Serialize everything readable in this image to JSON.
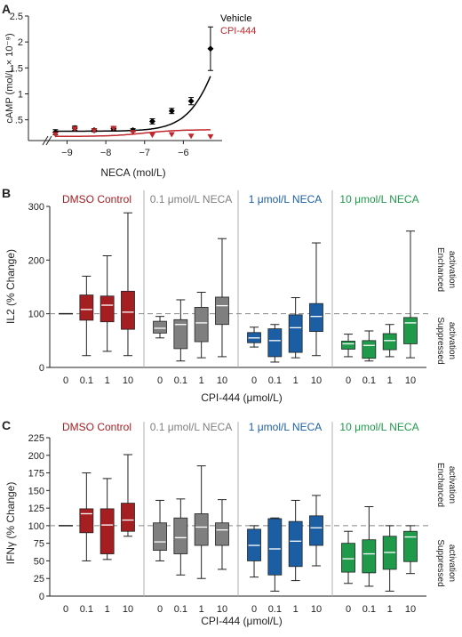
{
  "colors": {
    "vehicle": "#000000",
    "cpi": "#c0272d",
    "dmso": "#a51e22",
    "n01": "#7f7f7f",
    "n1": "#1b5ea4",
    "n10": "#1f9a4b",
    "axis": "#222222",
    "grid": "#b0b0b0"
  },
  "panel_letters": [
    "A",
    "B",
    "C"
  ],
  "chart_data": [
    {
      "type": "line",
      "panel": "A",
      "xlabel": "NECA (mol/L)",
      "ylabel": "cAMP (mol/L × 10⁻⁹)",
      "xlim": [
        -9.4,
        -5.0
      ],
      "ylim": [
        0.1,
        2.5
      ],
      "xticks": [
        -9,
        -8,
        -7,
        -6
      ],
      "yticks": [
        0.5,
        1,
        1.5,
        2,
        2.5
      ],
      "ytick_labels": [
        ".5",
        "1",
        "1.5",
        "2",
        "2.5"
      ],
      "series": [
        {
          "name": "Vehicle",
          "color_key": "vehicle",
          "marker": "diamond",
          "x": [
            -9.3,
            -8.8,
            -8.3,
            -7.8,
            -7.3,
            -6.8,
            -6.3,
            -5.8,
            -5.3
          ],
          "y": [
            0.26,
            0.34,
            0.3,
            0.33,
            0.3,
            0.47,
            0.67,
            0.86,
            1.87
          ],
          "err": [
            0.05,
            0.04,
            0.03,
            0.03,
            0.03,
            0.05,
            0.05,
            0.07,
            0.42
          ],
          "fit": {
            "bottom": 0.28,
            "ec50_log": -4.9,
            "top": 4.0
          }
        },
        {
          "name": "CPI-444",
          "color_key": "cpi",
          "marker": "triangle-down",
          "x": [
            -9.3,
            -8.8,
            -8.3,
            -7.8,
            -7.3,
            -6.8,
            -6.3,
            -5.8,
            -5.3
          ],
          "y": [
            0.22,
            0.33,
            0.29,
            0.34,
            0.26,
            0.21,
            0.22,
            0.19,
            0.18
          ],
          "fit": {
            "bottom": 0.18,
            "ec50_log": -7.0,
            "top": 0.31
          }
        }
      ]
    },
    {
      "type": "box",
      "panel": "B",
      "ylabel": "IL2 (% Change)",
      "xlabel": "CPI-444 (μmol/L)",
      "ylim": [
        0,
        300
      ],
      "yticks": [
        0,
        100,
        200,
        300
      ],
      "reference_line": 100,
      "right_labels": [
        "Enchanced",
        "activation",
        "Suppressed",
        "activation"
      ],
      "x_labels": [
        "0",
        "0.1",
        "1",
        "10"
      ],
      "groups": [
        {
          "title": "DMSO Control",
          "color_key": "dmso",
          "boxes": [
            {
              "baseline": 100
            },
            {
              "min": 22,
              "q1": 88,
              "median": 108,
              "q3": 135,
              "max": 170
            },
            {
              "min": 30,
              "q1": 85,
              "median": 116,
              "q3": 133,
              "max": 208
            },
            {
              "min": 22,
              "q1": 71,
              "median": 103,
              "q3": 142,
              "max": 288
            }
          ]
        },
        {
          "title": "0.1 μmol/L NECA",
          "color_key": "n01",
          "boxes": [
            {
              "min": 55,
              "q1": 64,
              "median": 73,
              "q3": 86,
              "max": 95
            },
            {
              "min": 12,
              "q1": 35,
              "median": 80,
              "q3": 89,
              "max": 126
            },
            {
              "min": 18,
              "q1": 48,
              "median": 83,
              "q3": 112,
              "max": 140
            },
            {
              "min": 20,
              "q1": 80,
              "median": 115,
              "q3": 131,
              "max": 240
            }
          ]
        },
        {
          "title": "1 μmol/L NECA",
          "color_key": "n1",
          "boxes": [
            {
              "min": 38,
              "q1": 46,
              "median": 55,
              "q3": 65,
              "max": 75
            },
            {
              "min": 10,
              "q1": 20,
              "median": 50,
              "q3": 72,
              "max": 80
            },
            {
              "min": 18,
              "q1": 28,
              "median": 74,
              "q3": 98,
              "max": 130
            },
            {
              "min": 22,
              "q1": 67,
              "median": 95,
              "q3": 119,
              "max": 232
            }
          ]
        },
        {
          "title": "10 μmol/L NECA",
          "color_key": "n10",
          "boxes": [
            {
              "min": 20,
              "q1": 34,
              "median": 44,
              "q3": 49,
              "max": 62
            },
            {
              "min": 12,
              "q1": 17,
              "median": 41,
              "q3": 50,
              "max": 68
            },
            {
              "min": 20,
              "q1": 33,
              "median": 50,
              "q3": 63,
              "max": 80
            },
            {
              "min": 18,
              "q1": 44,
              "median": 83,
              "q3": 93,
              "max": 254
            }
          ]
        }
      ]
    },
    {
      "type": "box",
      "panel": "C",
      "ylabel": "IFNγ (% Change)",
      "xlabel": "CPI-444 (μmol/L)",
      "ylim": [
        0,
        225
      ],
      "yticks": [
        0,
        25,
        50,
        75,
        100,
        125,
        150,
        175,
        200,
        225
      ],
      "reference_line": 100,
      "right_labels": [
        "Enchanced",
        "activation",
        "Suppressed",
        "activation"
      ],
      "x_labels": [
        "0",
        "0.1",
        "1",
        "10"
      ],
      "groups": [
        {
          "title": "DMSO Control",
          "color_key": "dmso",
          "boxes": [
            {
              "baseline": 100
            },
            {
              "min": 50,
              "q1": 90,
              "median": 117,
              "q3": 124,
              "max": 175
            },
            {
              "min": 52,
              "q1": 60,
              "median": 101,
              "q3": 124,
              "max": 167
            },
            {
              "min": 85,
              "q1": 92,
              "median": 108,
              "q3": 132,
              "max": 201
            }
          ]
        },
        {
          "title": "0.1 μmol/L NECA",
          "color_key": "n01",
          "boxes": [
            {
              "min": 50,
              "q1": 65,
              "median": 77,
              "q3": 104,
              "max": 136
            },
            {
              "min": 30,
              "q1": 60,
              "median": 83,
              "q3": 111,
              "max": 138
            },
            {
              "min": 25,
              "q1": 72,
              "median": 98,
              "q3": 117,
              "max": 185
            },
            {
              "min": 38,
              "q1": 72,
              "median": 94,
              "q3": 104,
              "max": 137
            }
          ]
        },
        {
          "title": "1 μmol/L NECA",
          "color_key": "n1",
          "boxes": [
            {
              "min": 27,
              "q1": 50,
              "median": 72,
              "q3": 95,
              "max": 100
            },
            {
              "min": 7,
              "q1": 30,
              "median": 67,
              "q3": 110,
              "max": 111
            },
            {
              "min": 22,
              "q1": 42,
              "median": 78,
              "q3": 106,
              "max": 136
            },
            {
              "min": 43,
              "q1": 72,
              "median": 97,
              "q3": 114,
              "max": 143
            }
          ]
        },
        {
          "title": "10 μmol/L NECA",
          "color_key": "n10",
          "boxes": [
            {
              "min": 18,
              "q1": 34,
              "median": 53,
              "q3": 75,
              "max": 92
            },
            {
              "min": 14,
              "q1": 33,
              "median": 60,
              "q3": 80,
              "max": 127
            },
            {
              "min": 7,
              "q1": 38,
              "median": 62,
              "q3": 85,
              "max": 100
            },
            {
              "min": 32,
              "q1": 49,
              "median": 84,
              "q3": 92,
              "max": 100
            }
          ]
        }
      ]
    }
  ]
}
